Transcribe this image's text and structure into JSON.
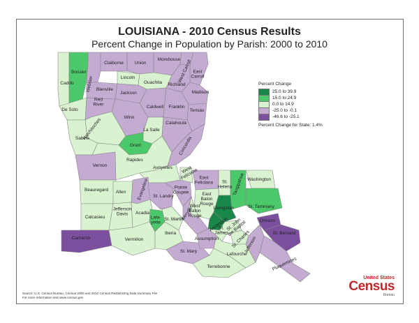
{
  "title": "LOUISIANA - 2010 Census Results",
  "subtitle": "Percent Change in Population by Parish:  2000 to 2010",
  "colors": {
    "cat1": "#18874a",
    "cat2": "#4bc86a",
    "cat3": "#d9f2d0",
    "cat4": "#c3abd2",
    "cat5": "#7c4f9e",
    "border": "#888888"
  },
  "legend": {
    "title": "Percent Change",
    "items": [
      {
        "label": "25.0 to 39.9"
      },
      {
        "label": "15.0 to 24.9"
      },
      {
        "label": "0.0 to 14.9"
      },
      {
        "label": "-25.0 to -0.1"
      },
      {
        "label": "-46.6 to -25.1"
      }
    ],
    "state": "Percent Change for State:  1.4%"
  },
  "parishes": [
    {
      "name": "Caddo",
      "cat": 3
    },
    {
      "name": "Bossier",
      "cat": 2
    },
    {
      "name": "Webster",
      "cat": 4
    },
    {
      "name": "Claiborne",
      "cat": 4
    },
    {
      "name": "Union",
      "cat": 4
    },
    {
      "name": "Morehouse",
      "cat": 4
    },
    {
      "name": "West Carroll",
      "cat": 4
    },
    {
      "name": "East Carroll",
      "cat": 4
    },
    {
      "name": "Lincoln",
      "cat": 3
    },
    {
      "name": "Ouachita",
      "cat": 3
    },
    {
      "name": "Richland",
      "cat": 4
    },
    {
      "name": "Madison",
      "cat": 4
    },
    {
      "name": "Bienville",
      "cat": 4
    },
    {
      "name": "Jackson",
      "cat": 4
    },
    {
      "name": "De Soto",
      "cat": 3
    },
    {
      "name": "Red River",
      "cat": 4
    },
    {
      "name": "Caldwell",
      "cat": 4
    },
    {
      "name": "Franklin",
      "cat": 4
    },
    {
      "name": "Tensas",
      "cat": 4
    },
    {
      "name": "Winn",
      "cat": 4
    },
    {
      "name": "Natchitoches",
      "cat": 3
    },
    {
      "name": "Sabine",
      "cat": 3
    },
    {
      "name": "La Salle",
      "cat": 3
    },
    {
      "name": "Catahoula",
      "cat": 4
    },
    {
      "name": "Grant",
      "cat": 2
    },
    {
      "name": "Concordia",
      "cat": 4
    },
    {
      "name": "Vernon",
      "cat": 4
    },
    {
      "name": "Rapides",
      "cat": 3
    },
    {
      "name": "Avoyelles",
      "cat": 3
    },
    {
      "name": "Beauregard",
      "cat": 3
    },
    {
      "name": "Allen",
      "cat": 3
    },
    {
      "name": "Evangeline",
      "cat": 4
    },
    {
      "name": "St. Landry",
      "cat": 4
    },
    {
      "name": "Pointe Coupee",
      "cat": 4
    },
    {
      "name": "West Feliciana",
      "cat": 3
    },
    {
      "name": "East Feliciana",
      "cat": 4
    },
    {
      "name": "St. Helena",
      "cat": 3
    },
    {
      "name": "Tangipahoa",
      "cat": 2
    },
    {
      "name": "Washington",
      "cat": 3
    },
    {
      "name": "St. Tammany",
      "cat": 2
    },
    {
      "name": "Livingston",
      "cat": 1
    },
    {
      "name": "Ascension",
      "cat": 1
    },
    {
      "name": "East Baton Rouge",
      "cat": 3
    },
    {
      "name": "West Baton Rouge",
      "cat": 3
    },
    {
      "name": "Iberville",
      "cat": 4
    },
    {
      "name": "Calcasieu",
      "cat": 3
    },
    {
      "name": "Jefferson Davis",
      "cat": 3
    },
    {
      "name": "Acadia",
      "cat": 3
    },
    {
      "name": "Lafayette",
      "cat": 2
    },
    {
      "name": "St. Martin",
      "cat": 3
    },
    {
      "name": "Cameron",
      "cat": 5
    },
    {
      "name": "Vermilion",
      "cat": 3
    },
    {
      "name": "Iberia",
      "cat": 3
    },
    {
      "name": "St. Mary",
      "cat": 4
    },
    {
      "name": "Assumption",
      "cat": 4
    },
    {
      "name": "St. James",
      "cat": 3
    },
    {
      "name": "St. John the Baptist",
      "cat": 3
    },
    {
      "name": "St. Charles",
      "cat": 3
    },
    {
      "name": "Lafourche",
      "cat": 3
    },
    {
      "name": "Terrebonne",
      "cat": 3
    },
    {
      "name": "Jefferson",
      "cat": 4
    },
    {
      "name": "Orleans",
      "cat": 5
    },
    {
      "name": "St. Bernard",
      "cat": 5
    },
    {
      "name": "Plaquemines",
      "cat": 4
    }
  ],
  "source": {
    "line1": "Source:  U.S. Census Bureau, Census 2000 and 2010 Census Redistricting Data Summary File",
    "line2": "For more information visit www.census.gov"
  },
  "logo": {
    "line1": "United States",
    "line2": "Census",
    "line3": "Bureau"
  }
}
